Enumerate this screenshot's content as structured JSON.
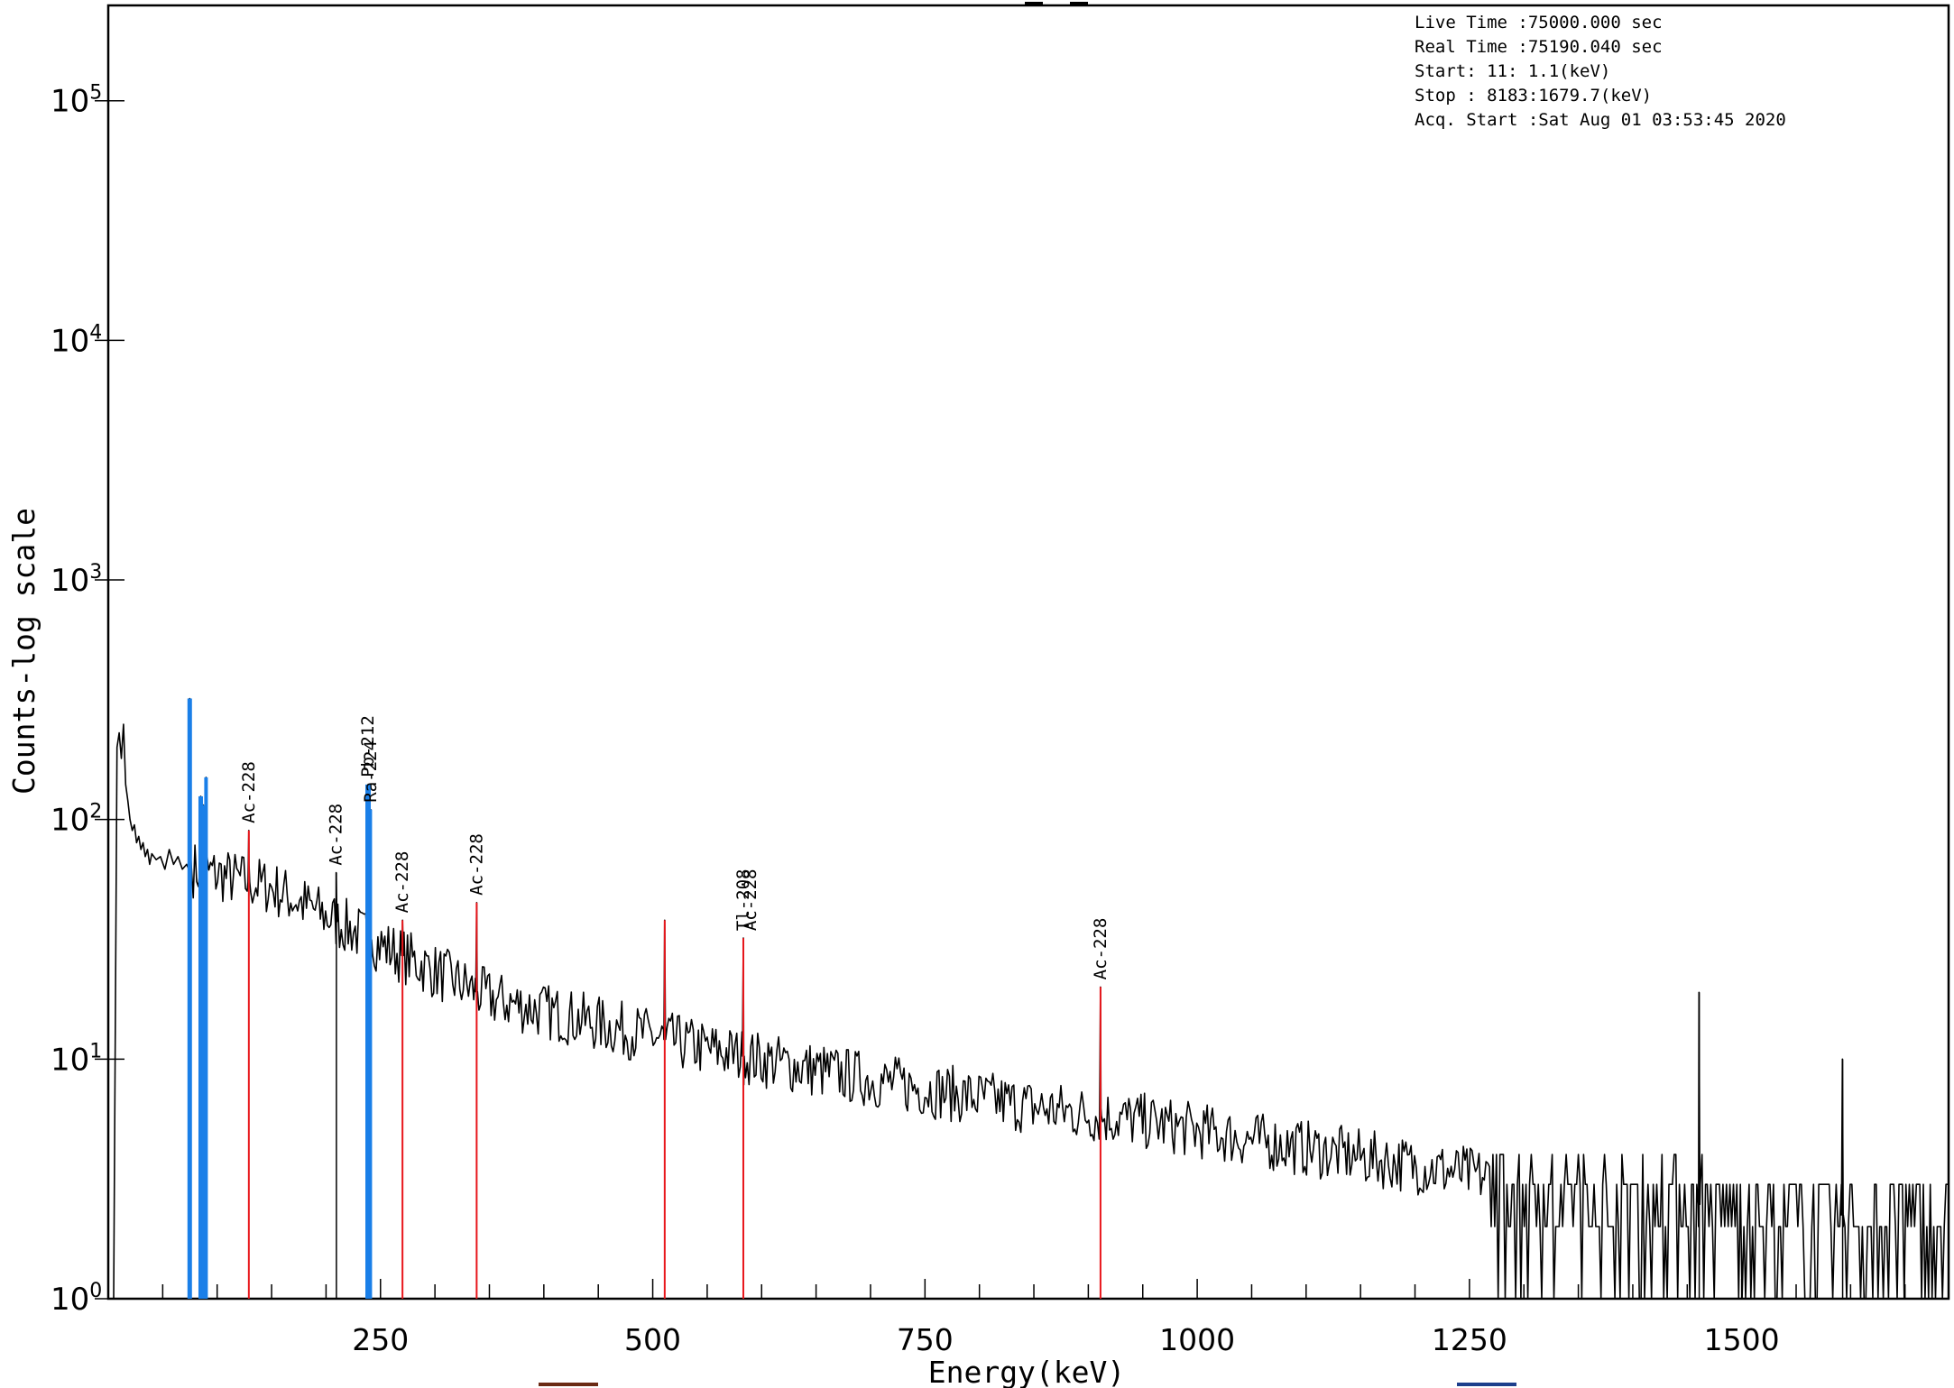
{
  "chart_data": {
    "type": "line",
    "title": "",
    "xlabel": "Energy(keV)",
    "ylabel": "Counts-log scale",
    "xlim": [
      0,
      1690
    ],
    "ylim": [
      1,
      250000
    ],
    "y_scale": "log",
    "x_ticks": [
      "250",
      "500",
      "750",
      "1000",
      "1250",
      "1500"
    ],
    "y_ticks": [
      {
        "base": "10",
        "exp": "0"
      },
      {
        "base": "10",
        "exp": "1"
      },
      {
        "base": "10",
        "exp": "2"
      },
      {
        "base": "10",
        "exp": "3"
      },
      {
        "base": "10",
        "exp": "4"
      },
      {
        "base": "10",
        "exp": "5"
      }
    ],
    "grid": false,
    "info_lines": [
      "Live Time  :75000.000 sec",
      "Real Time  :75190.040 sec",
      "Start:   11:   1.1(keV)",
      "Stop : 8183:1679.7(keV)",
      "Acq. Start :Sat Aug 01 03:53:45 2020"
    ],
    "spectrum": {
      "color": "#000000",
      "points": [
        [
          1.1,
          1
        ],
        [
          5,
          1
        ],
        [
          8,
          200
        ],
        [
          10,
          230
        ],
        [
          12,
          180
        ],
        [
          14,
          250
        ],
        [
          16,
          140
        ],
        [
          18,
          120
        ],
        [
          20,
          100
        ],
        [
          22,
          90
        ],
        [
          24,
          95
        ],
        [
          26,
          80
        ],
        [
          28,
          85
        ],
        [
          30,
          75
        ],
        [
          32,
          80
        ],
        [
          34,
          70
        ],
        [
          36,
          75
        ],
        [
          38,
          65
        ],
        [
          40,
          72
        ],
        [
          44,
          68
        ],
        [
          48,
          70
        ],
        [
          52,
          62
        ],
        [
          56,
          75
        ],
        [
          60,
          65
        ],
        [
          64,
          70
        ],
        [
          68,
          62
        ],
        [
          72,
          65
        ],
        [
          76,
          68
        ]
      ],
      "noise_seed": 7
    },
    "peaks": [
      {
        "energy": 74.8,
        "counts": 320,
        "color": "#1a7fe8",
        "label": "",
        "width": 5
      },
      {
        "energy": 84.9,
        "counts": 125,
        "color": "#1a7fe8",
        "label": "",
        "width": 5
      },
      {
        "energy": 87.3,
        "counts": 115,
        "color": "#1a7fe8",
        "label": "",
        "width": 4
      },
      {
        "energy": 89.8,
        "counts": 150,
        "color": "#1a7fe8",
        "label": "",
        "width": 4
      },
      {
        "energy": 129.1,
        "counts": 90,
        "color": "#e8161b",
        "label": "Ac-228",
        "width": 2
      },
      {
        "energy": 209.3,
        "counts": 60,
        "color": "#000000",
        "label": "Ac-228",
        "width": 1
      },
      {
        "energy": 238.6,
        "counts": 140,
        "color": "#1a7fe8",
        "label": "Pb-212",
        "width": 6
      },
      {
        "energy": 241.0,
        "counts": 110,
        "color": "#1a7fe8",
        "label": "Ra-224",
        "width": 3
      },
      {
        "energy": 270.2,
        "counts": 38,
        "color": "#e8161b",
        "label": "Ac-228",
        "width": 2
      },
      {
        "energy": 338.3,
        "counts": 45,
        "color": "#e8161b",
        "label": "Ac-228",
        "width": 2
      },
      {
        "energy": 511.0,
        "counts": 38,
        "color": "#e8161b",
        "label": "",
        "width": 2
      },
      {
        "energy": 583.2,
        "counts": 32,
        "color": "#e8161b",
        "label": "Tl-208",
        "width": 2
      },
      {
        "energy": 583.2,
        "counts": 32,
        "color": "#e8161b",
        "label": "Ac-228",
        "width": 0
      },
      {
        "energy": 911.2,
        "counts": 20,
        "color": "#e8161b",
        "label": "Ac-228",
        "width": 2
      },
      {
        "energy": 1460.8,
        "counts": 19,
        "color": "#000000",
        "label": "",
        "width": 1
      },
      {
        "energy": 1592.5,
        "counts": 10,
        "color": "#000000",
        "label": "",
        "width": 1
      }
    ],
    "baseline": [
      [
        80,
        62
      ],
      [
        150,
        52
      ],
      [
        250,
        30
      ],
      [
        350,
        18
      ],
      [
        450,
        14
      ],
      [
        550,
        11
      ],
      [
        650,
        9
      ],
      [
        750,
        7.5
      ],
      [
        850,
        6.3
      ],
      [
        950,
        5.5
      ],
      [
        1050,
        4.6
      ],
      [
        1150,
        3.9
      ],
      [
        1250,
        3.3
      ],
      [
        1350,
        2.8
      ],
      [
        1450,
        2.5
      ],
      [
        1550,
        2.3
      ],
      [
        1690,
        2.1
      ]
    ]
  }
}
